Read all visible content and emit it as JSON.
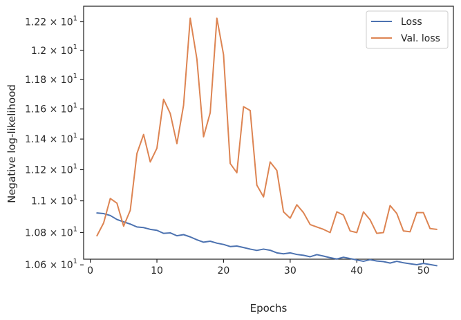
{
  "chart_data": {
    "type": "line",
    "xlabel": "Epochs",
    "ylabel": "Negative log-likelihood",
    "xlim": [
      -1,
      54.5
    ],
    "ylim": [
      10.635,
      12.31
    ],
    "yscale": "log",
    "grid": false,
    "legend_position": "top-right",
    "x_ticks": [
      0,
      10,
      20,
      30,
      40,
      50
    ],
    "x_tick_labels": [
      "0",
      "10",
      "20",
      "30",
      "40",
      "50"
    ],
    "y_ticks": [
      {
        "value": 10.6,
        "mantissa": "1.06",
        "times": " × 10",
        "exp": "1"
      },
      {
        "value": 10.8,
        "mantissa": "1.08",
        "times": " × 10",
        "exp": "1"
      },
      {
        "value": 11.0,
        "mantissa": "1.1",
        "times": " × 10",
        "exp": "1"
      },
      {
        "value": 11.2,
        "mantissa": "1.12",
        "times": " × 10",
        "exp": "1"
      },
      {
        "value": 11.4,
        "mantissa": "1.14",
        "times": " × 10",
        "exp": "1"
      },
      {
        "value": 11.6,
        "mantissa": "1.16",
        "times": " × 10",
        "exp": "1"
      },
      {
        "value": 11.8,
        "mantissa": "1.18",
        "times": " × 10",
        "exp": "1"
      },
      {
        "value": 12.0,
        "mantissa": "1.2",
        "times": " × 10",
        "exp": "1"
      },
      {
        "value": 12.2,
        "mantissa": "1.22",
        "times": " × 10",
        "exp": "1"
      }
    ],
    "series": [
      {
        "name": "Loss",
        "color": "#4c72b0",
        "x": [
          1,
          2,
          3,
          4,
          5,
          6,
          7,
          8,
          9,
          10,
          11,
          12,
          13,
          14,
          15,
          16,
          17,
          18,
          19,
          20,
          21,
          22,
          23,
          24,
          25,
          26,
          27,
          28,
          29,
          30,
          31,
          32,
          33,
          34,
          35,
          36,
          37,
          38,
          39,
          40,
          41,
          42,
          43,
          44,
          45,
          46,
          47,
          48,
          49,
          50,
          51,
          52
        ],
        "values": [
          10.923,
          10.919,
          10.907,
          10.882,
          10.867,
          10.853,
          10.835,
          10.831,
          10.82,
          10.814,
          10.795,
          10.798,
          10.78,
          10.787,
          10.773,
          10.755,
          10.74,
          10.746,
          10.734,
          10.726,
          10.713,
          10.716,
          10.707,
          10.697,
          10.689,
          10.697,
          10.69,
          10.674,
          10.668,
          10.674,
          10.664,
          10.659,
          10.65,
          10.663,
          10.654,
          10.644,
          10.636,
          10.647,
          10.639,
          10.63,
          10.622,
          10.632,
          10.624,
          10.62,
          10.611,
          10.622,
          10.613,
          10.607,
          10.601,
          10.609,
          10.602,
          10.595
        ]
      },
      {
        "name": "Val. loss",
        "color": "#dd8452",
        "x": [
          1,
          2,
          3,
          4,
          5,
          6,
          7,
          8,
          9,
          10,
          11,
          12,
          13,
          14,
          15,
          16,
          17,
          18,
          19,
          20,
          21,
          22,
          23,
          24,
          25,
          26,
          27,
          28,
          29,
          30,
          31,
          32,
          33,
          34,
          35,
          36,
          37,
          38,
          39,
          40,
          41,
          42,
          43,
          44,
          45,
          46,
          47,
          48,
          49,
          50,
          51,
          52
        ],
        "values": [
          10.78,
          10.86,
          11.015,
          10.985,
          10.84,
          10.94,
          11.305,
          11.43,
          11.25,
          11.34,
          11.665,
          11.57,
          11.37,
          11.625,
          12.225,
          11.94,
          11.415,
          11.575,
          12.225,
          11.97,
          11.24,
          11.18,
          11.615,
          11.59,
          11.1,
          11.025,
          11.25,
          11.195,
          10.93,
          10.89,
          10.975,
          10.925,
          10.85,
          10.835,
          10.82,
          10.8,
          10.93,
          10.91,
          10.81,
          10.8,
          10.93,
          10.88,
          10.795,
          10.8,
          10.97,
          10.92,
          10.81,
          10.805,
          10.925,
          10.925,
          10.825,
          10.82
        ]
      }
    ]
  }
}
